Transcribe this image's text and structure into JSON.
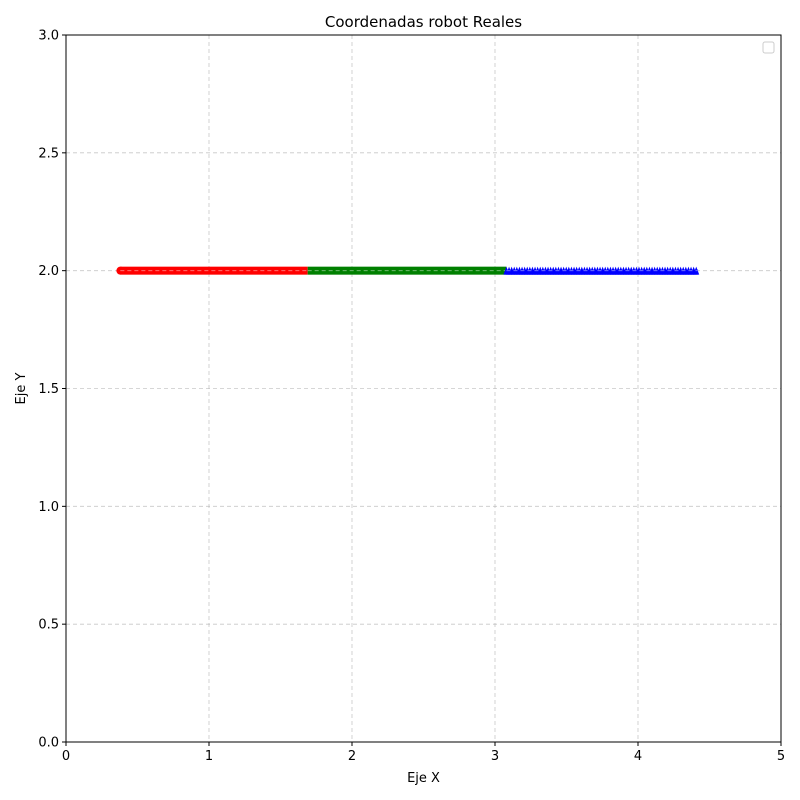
{
  "chart_data": {
    "type": "scatter",
    "title": "Coordenadas robot Reales",
    "xlabel": "Eje X",
    "ylabel": "Eje Y",
    "xlim": [
      0,
      5
    ],
    "ylim": [
      0,
      3
    ],
    "xticks": [
      0,
      1,
      2,
      3,
      4,
      5
    ],
    "xtick_labels": [
      "0",
      "1",
      "2",
      "3",
      "4",
      "5"
    ],
    "yticks": [
      0,
      0.5,
      1,
      1.5,
      2,
      2.5,
      3
    ],
    "ytick_labels": [
      "0.0",
      "0.5",
      "1.0",
      "1.5",
      "2.0",
      "2.5",
      "3.0"
    ],
    "grid": true,
    "legend": {
      "placement": "top-right",
      "entries": []
    },
    "series": [
      {
        "color": "#ff0000",
        "marker": "circle",
        "x_start": 0.38,
        "x_end": 1.69,
        "y": 2.0
      },
      {
        "color": "#008000",
        "marker": "square",
        "x_start": 1.69,
        "x_end": 3.08,
        "y": 2.0
      },
      {
        "color": "#0000ff",
        "marker": "triangle",
        "x_start": 3.08,
        "x_end": 4.42,
        "y": 2.0
      }
    ]
  }
}
